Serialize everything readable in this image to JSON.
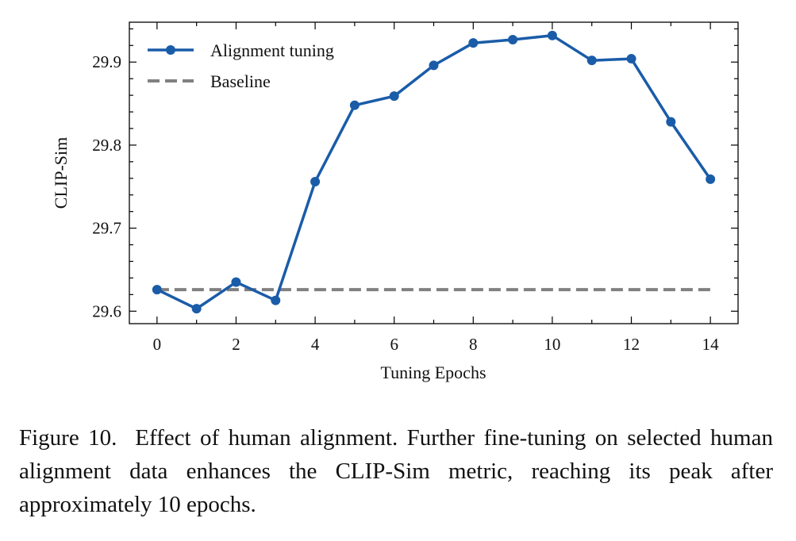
{
  "chart_data": {
    "type": "line",
    "title": "",
    "xlabel": "Tuning Epochs",
    "ylabel": "CLIP-Sim",
    "xlim": [
      -0.7,
      14.7
    ],
    "ylim": [
      29.585,
      29.948
    ],
    "xticks": [
      0,
      2,
      4,
      6,
      8,
      10,
      12,
      14
    ],
    "xticks_minor": [
      1,
      3,
      5,
      7,
      9,
      11,
      13
    ],
    "yticks": [
      29.6,
      29.7,
      29.8,
      29.9
    ],
    "ytick_labels": [
      "29.6",
      "29.7",
      "29.8",
      "29.9"
    ],
    "grid": false,
    "legend_position": "top-left",
    "series": [
      {
        "name": "Alignment tuning",
        "style": "solid-with-markers",
        "color": "#1a5ca8",
        "x": [
          0,
          1,
          2,
          3,
          4,
          5,
          6,
          7,
          8,
          9,
          10,
          11,
          12,
          13,
          14
        ],
        "values": [
          29.626,
          29.603,
          29.635,
          29.613,
          29.756,
          29.848,
          29.859,
          29.896,
          29.923,
          29.927,
          29.932,
          29.902,
          29.904,
          29.828,
          29.759
        ]
      },
      {
        "name": "Baseline",
        "style": "dashed",
        "color": "#808080",
        "x": [
          0,
          14
        ],
        "values": [
          29.626,
          29.626
        ]
      }
    ]
  },
  "caption": {
    "label": "Figure 10.",
    "text": "Effect of human alignment. Further fine-tuning on selected human alignment data enhances the CLIP-Sim metric, reaching its peak after approximately 10 epochs."
  }
}
